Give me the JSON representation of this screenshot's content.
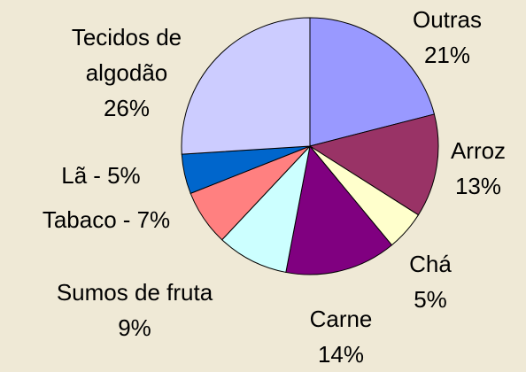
{
  "chart_data": {
    "type": "pie",
    "categories": [
      "Outras",
      "Arroz",
      "Chá",
      "Carne",
      "Sumos de fruta",
      "Tabaco",
      "Lã",
      "Tecidos de algodão"
    ],
    "values": [
      21,
      13,
      5,
      14,
      9,
      7,
      5,
      26
    ],
    "value_labels": [
      "21%",
      "13%",
      "5%",
      "14%",
      "9%",
      "- 7%",
      "- 5%",
      "26%"
    ],
    "colors": [
      "#9999ff",
      "#993366",
      "#ffffcc",
      "#800080",
      "#ccffff",
      "#ff8080",
      "#0066cc",
      "#ccccff"
    ]
  }
}
